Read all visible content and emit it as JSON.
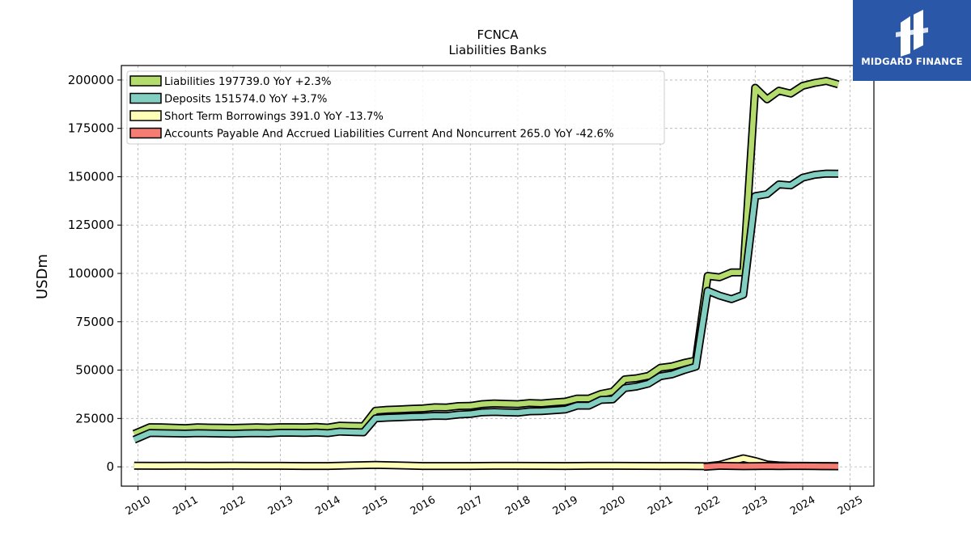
{
  "brand": {
    "name": "MIDGARD FINANCE",
    "bg": "#2a57a8"
  },
  "chart_data": {
    "type": "line",
    "title": "FCNCA",
    "subtitle": "Liabilities Banks",
    "xlabel": "",
    "ylabel": "USDm",
    "xlim": [
      2009.65,
      2025.5
    ],
    "ylim": [
      -10000,
      207500
    ],
    "xticks": [
      "2010",
      "2011",
      "2012",
      "2013",
      "2014",
      "2015",
      "2016",
      "2017",
      "2018",
      "2019",
      "2020",
      "2021",
      "2022",
      "2023",
      "2024",
      "2025"
    ],
    "yticks": [
      0,
      25000,
      50000,
      75000,
      100000,
      125000,
      150000,
      175000,
      200000
    ],
    "ytick_labels": [
      "0",
      "25000",
      "50000",
      "75000",
      "100000",
      "125000",
      "150000",
      "175000",
      "200000"
    ],
    "grid": true,
    "legend_position": "top-left",
    "series": [
      {
        "name": "Liabilities  197739.0 YoY +2.3%",
        "color": "#b4dc6c",
        "x": [
          2009.92,
          2010.25,
          2010.5,
          2010.75,
          2011.0,
          2011.25,
          2011.5,
          2011.75,
          2012.0,
          2012.25,
          2012.5,
          2012.75,
          2013.0,
          2013.25,
          2013.5,
          2013.75,
          2014.0,
          2014.25,
          2014.5,
          2014.75,
          2015.0,
          2015.25,
          2015.5,
          2015.75,
          2016.0,
          2016.25,
          2016.5,
          2016.75,
          2017.0,
          2017.25,
          2017.5,
          2017.75,
          2018.0,
          2018.25,
          2018.5,
          2018.75,
          2019.0,
          2019.25,
          2019.5,
          2019.75,
          2020.0,
          2020.25,
          2020.5,
          2020.75,
          2021.0,
          2021.25,
          2021.5,
          2021.75,
          2022.0,
          2022.25,
          2022.5,
          2022.75,
          2023.0,
          2023.25,
          2023.5,
          2023.75,
          2024.0,
          2024.25,
          2024.5,
          2024.75
        ],
        "y": [
          17000,
          20500,
          20400,
          20200,
          20000,
          20400,
          20300,
          20200,
          20100,
          20300,
          20400,
          20300,
          20500,
          20500,
          20400,
          20600,
          20300,
          21300,
          21100,
          21000,
          29000,
          29500,
          29700,
          30000,
          30200,
          30800,
          30700,
          31400,
          31500,
          32400,
          32800,
          32600,
          32400,
          33000,
          32800,
          33300,
          33700,
          35300,
          35300,
          37700,
          38900,
          45200,
          45800,
          47000,
          51200,
          52000,
          53700,
          55000,
          98700,
          98000,
          100500,
          100500,
          196000,
          190000,
          194500,
          193000,
          197000,
          198500,
          199500,
          197739
        ]
      },
      {
        "name": "Deposits  151574.0 YoY +3.7%",
        "color": "#82cfc2",
        "x": [
          2009.92,
          2010.25,
          2010.5,
          2010.75,
          2011.0,
          2011.25,
          2011.5,
          2011.75,
          2012.0,
          2012.25,
          2012.5,
          2012.75,
          2013.0,
          2013.25,
          2013.5,
          2013.75,
          2014.0,
          2014.25,
          2014.5,
          2014.75,
          2015.0,
          2015.25,
          2015.5,
          2015.75,
          2016.0,
          2016.25,
          2016.5,
          2016.75,
          2017.0,
          2017.25,
          2017.5,
          2017.75,
          2018.0,
          2018.25,
          2018.5,
          2018.75,
          2019.0,
          2019.25,
          2019.5,
          2019.75,
          2020.0,
          2020.25,
          2020.5,
          2020.75,
          2021.0,
          2021.25,
          2021.5,
          2021.75,
          2022.0,
          2022.25,
          2022.5,
          2022.75,
          2023.0,
          2023.25,
          2023.5,
          2023.75,
          2024.0,
          2024.25,
          2024.5,
          2024.75
        ],
        "y": [
          14000,
          17500,
          17400,
          17300,
          17200,
          17400,
          17300,
          17200,
          17100,
          17300,
          17400,
          17300,
          17600,
          17600,
          17500,
          17700,
          17400,
          18200,
          18000,
          17800,
          25000,
          25400,
          25600,
          25900,
          26000,
          26400,
          26300,
          27000,
          27300,
          28200,
          28400,
          28200,
          28000,
          28700,
          28800,
          29200,
          29600,
          31600,
          31600,
          34600,
          34900,
          40700,
          41500,
          43000,
          46800,
          47800,
          50000,
          51800,
          91000,
          88500,
          86700,
          89000,
          140000,
          141000,
          146000,
          145500,
          149500,
          151000,
          151600,
          151574
        ]
      },
      {
        "name": "Short Term Borrowings  391.0 YoY -13.7%",
        "color": "#ffffb8",
        "x": [
          2009.92,
          2010.5,
          2011.0,
          2011.5,
          2012.0,
          2012.5,
          2013.0,
          2013.5,
          2014.0,
          2014.5,
          2015.0,
          2015.5,
          2016.0,
          2016.5,
          2017.0,
          2017.5,
          2018.0,
          2018.5,
          2019.0,
          2019.5,
          2020.0,
          2020.5,
          2021.0,
          2021.5,
          2022.0,
          2022.25,
          2022.5,
          2022.75,
          2023.0,
          2023.25,
          2023.5,
          2023.75,
          2024.0,
          2024.25,
          2024.5,
          2024.75
        ],
        "y": [
          600,
          500,
          600,
          500,
          600,
          500,
          500,
          400,
          400,
          700,
          1000,
          700,
          400,
          400,
          400,
          500,
          500,
          450,
          400,
          500,
          500,
          450,
          400,
          400,
          300,
          1000,
          2700,
          4400,
          3000,
          1200,
          700,
          500,
          500,
          450,
          420,
          391
        ]
      },
      {
        "name": "Accounts Payable And Accrued Liabilities Current And Noncurrent  265.0 YoY -42.6%",
        "color": "#f47c72",
        "x": [
          2021.92,
          2022.25,
          2022.5,
          2022.75,
          2023.0,
          2023.25,
          2023.5,
          2023.75,
          2024.0,
          2024.25,
          2024.5,
          2024.75
        ],
        "y": [
          0,
          500,
          400,
          300,
          350,
          460,
          350,
          400,
          420,
          380,
          300,
          265
        ]
      }
    ]
  }
}
